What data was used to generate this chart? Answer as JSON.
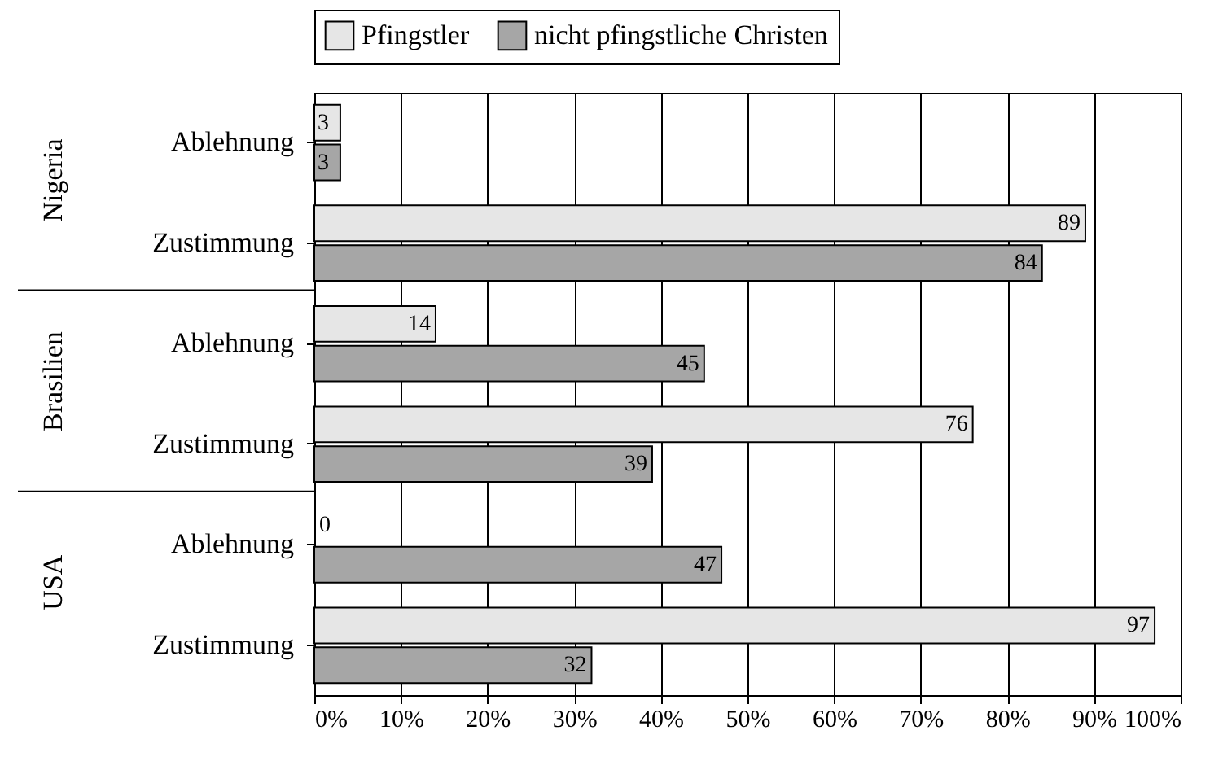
{
  "chart_data": {
    "type": "bar",
    "orientation": "horizontal",
    "categories": [
      "Ablehnung",
      "Zustimmung",
      "Ablehnung",
      "Zustimmung",
      "Ablehnung",
      "Zustimmung"
    ],
    "annotations": [
      "Nigeria",
      "Brasilien",
      "USA"
    ],
    "series": [
      {
        "name": "Pfingstler",
        "color": "#e6e6e6",
        "values": [
          3,
          89,
          14,
          76,
          0,
          97
        ]
      },
      {
        "name": "nicht pfingstliche Christen",
        "color": "#a6a6a6",
        "values": [
          3,
          84,
          45,
          39,
          47,
          32
        ]
      }
    ],
    "xlim": [
      0,
      100
    ],
    "xticks": [
      {
        "value": 0,
        "label": "0%"
      },
      {
        "value": 10,
        "label": "10%"
      },
      {
        "value": 20,
        "label": "20%"
      },
      {
        "value": 30,
        "label": "30%"
      },
      {
        "value": 40,
        "label": "40%"
      },
      {
        "value": 50,
        "label": "50%"
      },
      {
        "value": 60,
        "label": "60%"
      },
      {
        "value": 70,
        "label": "70%"
      },
      {
        "value": 80,
        "label": "80%"
      },
      {
        "value": 90,
        "label": "90%"
      },
      {
        "value": 100,
        "label": "100%"
      }
    ],
    "grid": "x",
    "legend": "top",
    "data_labels": true
  }
}
